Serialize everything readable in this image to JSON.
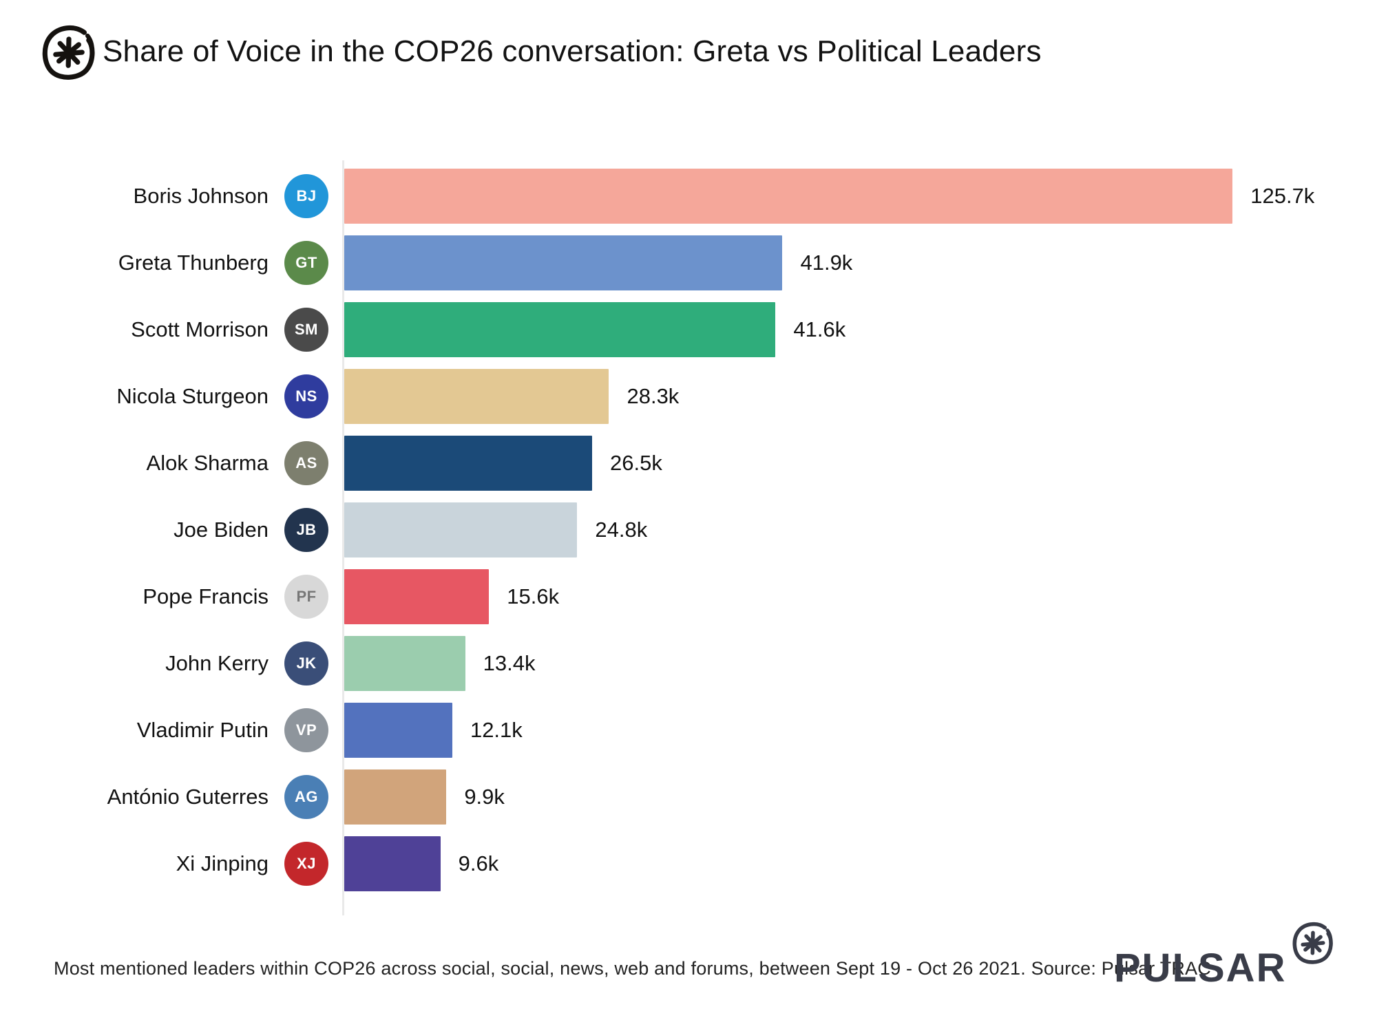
{
  "header": {
    "title": "Share of Voice in the COP26 conversation: Greta vs Political Leaders"
  },
  "chart_data": {
    "type": "bar",
    "orientation": "horizontal",
    "title": "Share of Voice in the COP26 conversation: Greta vs Political Leaders",
    "unit": "mentions",
    "categories": [
      "Boris Johnson",
      "Greta Thunberg",
      "Scott Morrison",
      "Nicola Sturgeon",
      "Alok Sharma",
      "Joe Biden",
      "Pope Francis",
      "John Kerry",
      "Vladimir Putin",
      "António Guterres",
      "Xi Jinping"
    ],
    "values": [
      125700,
      41900,
      41600,
      28300,
      26500,
      24800,
      15600,
      13400,
      12100,
      9900,
      9600
    ],
    "value_labels": [
      "125.7k",
      "41.9k",
      "41.6k",
      "28.3k",
      "26.5k",
      "24.8k",
      "15.6k",
      "13.4k",
      "12.1k",
      "9.9k",
      "9.6k"
    ],
    "bar_colors": [
      "#F5A79A",
      "#6C92CC",
      "#2FAD7B",
      "#E3C893",
      "#1B4A78",
      "#C9D4DB",
      "#E75763",
      "#9BCDAE",
      "#5372BE",
      "#D1A47B",
      "#4F4197"
    ],
    "avatars": [
      {
        "initials": "BJ",
        "bg": "#2196D9",
        "fg": "#ffffff"
      },
      {
        "initials": "GT",
        "bg": "#5B8A4A",
        "fg": "#ffffff"
      },
      {
        "initials": "SM",
        "bg": "#4A4A4A",
        "fg": "#ffffff"
      },
      {
        "initials": "NS",
        "bg": "#2F3C9E",
        "fg": "#ffffff"
      },
      {
        "initials": "AS",
        "bg": "#7D7F6E",
        "fg": "#ffffff"
      },
      {
        "initials": "JB",
        "bg": "#22344E",
        "fg": "#ffffff"
      },
      {
        "initials": "PF",
        "bg": "#D8D8D8",
        "fg": "#777777"
      },
      {
        "initials": "JK",
        "bg": "#3A4E78",
        "fg": "#ffffff"
      },
      {
        "initials": "VP",
        "bg": "#8E959C",
        "fg": "#ffffff"
      },
      {
        "initials": "AG",
        "bg": "#4A7FB5",
        "fg": "#ffffff"
      },
      {
        "initials": "XJ",
        "bg": "#C3272B",
        "fg": "#ffffff"
      }
    ],
    "layout": {
      "grid": false,
      "legend": false,
      "bar_track_pcts": [
        89.6,
        44.2,
        43.5,
        26.7,
        25.0,
        23.5,
        14.6,
        12.2,
        10.9,
        10.3,
        9.7
      ],
      "first_bar_visually_truncated": true
    }
  },
  "footer": {
    "caption": "Most mentioned leaders within COP26 across social, social, news, web and forums, between Sept 19 - Oct 26 2021. Source: Pulsar TRAC",
    "brand": "PULSAR"
  },
  "colors": {
    "brand_dark": "#393c48",
    "axis_line": "#e9e9e9",
    "text": "#121212"
  }
}
